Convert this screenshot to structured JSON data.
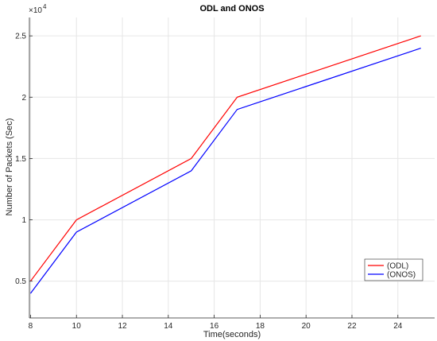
{
  "chart_data": {
    "type": "line",
    "title": "ODL and ONOS",
    "xlabel": "Time(seconds)",
    "ylabel": "Number of Packets (Sec)",
    "y_exponent_label": "×10",
    "y_exponent_power": "4",
    "xlim": [
      7.95,
      25.6
    ],
    "ylim": [
      0.2,
      2.65
    ],
    "xticks": [
      8,
      10,
      12,
      14,
      16,
      18,
      20,
      22,
      24
    ],
    "yticks": [
      0.5,
      1,
      1.5,
      2,
      2.5
    ],
    "ytick_labels": [
      "0.5",
      "1",
      "1.5",
      "2",
      "2.5"
    ],
    "grid": true,
    "legend_position": "lower-right",
    "series": [
      {
        "name": "(ODL)",
        "color": "#ff0000",
        "x": [
          8,
          10,
          15,
          17,
          25
        ],
        "y": [
          0.5,
          1.0,
          1.5,
          2.0,
          2.5
        ]
      },
      {
        "name": "(ONOS)",
        "color": "#0000ff",
        "x": [
          8,
          10,
          15,
          17,
          25
        ],
        "y": [
          0.4,
          0.9,
          1.4,
          1.9,
          2.4
        ]
      }
    ]
  }
}
